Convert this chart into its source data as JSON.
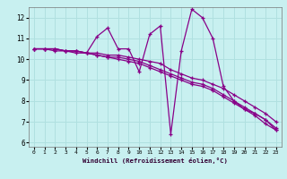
{
  "xlabel": "Windchill (Refroidissement éolien,°C)",
  "bg_color": "#c8f0f0",
  "grid_color": "#b0e0e0",
  "line_color": "#880088",
  "xlim": [
    -0.5,
    23.5
  ],
  "ylim": [
    5.8,
    12.5
  ],
  "xticks": [
    0,
    1,
    2,
    3,
    4,
    5,
    6,
    7,
    8,
    9,
    10,
    11,
    12,
    13,
    14,
    15,
    16,
    17,
    18,
    19,
    20,
    21,
    22,
    23
  ],
  "yticks": [
    6,
    7,
    8,
    9,
    10,
    11,
    12
  ],
  "series": [
    [
      10.5,
      10.5,
      10.5,
      10.4,
      10.4,
      10.3,
      11.1,
      11.5,
      10.5,
      10.5,
      9.4,
      11.2,
      11.6,
      6.4,
      10.4,
      12.4,
      12.0,
      11.0,
      8.7,
      8.0,
      7.6,
      7.4,
      7.1,
      6.6
    ],
    [
      10.5,
      10.5,
      10.5,
      10.4,
      10.4,
      10.3,
      10.3,
      10.2,
      10.2,
      10.1,
      10.0,
      9.9,
      9.8,
      9.5,
      9.3,
      9.1,
      9.0,
      8.8,
      8.6,
      8.3,
      8.0,
      7.7,
      7.4,
      7.0
    ],
    [
      10.5,
      10.5,
      10.5,
      10.4,
      10.4,
      10.3,
      10.2,
      10.1,
      10.0,
      9.9,
      9.8,
      9.6,
      9.4,
      9.2,
      9.0,
      8.8,
      8.7,
      8.5,
      8.2,
      7.9,
      7.6,
      7.3,
      6.9,
      6.6
    ],
    [
      10.5,
      10.5,
      10.4,
      10.4,
      10.3,
      10.3,
      10.2,
      10.1,
      10.1,
      10.0,
      9.9,
      9.7,
      9.5,
      9.3,
      9.1,
      8.9,
      8.8,
      8.6,
      8.3,
      8.0,
      7.7,
      7.4,
      7.1,
      6.7
    ]
  ]
}
